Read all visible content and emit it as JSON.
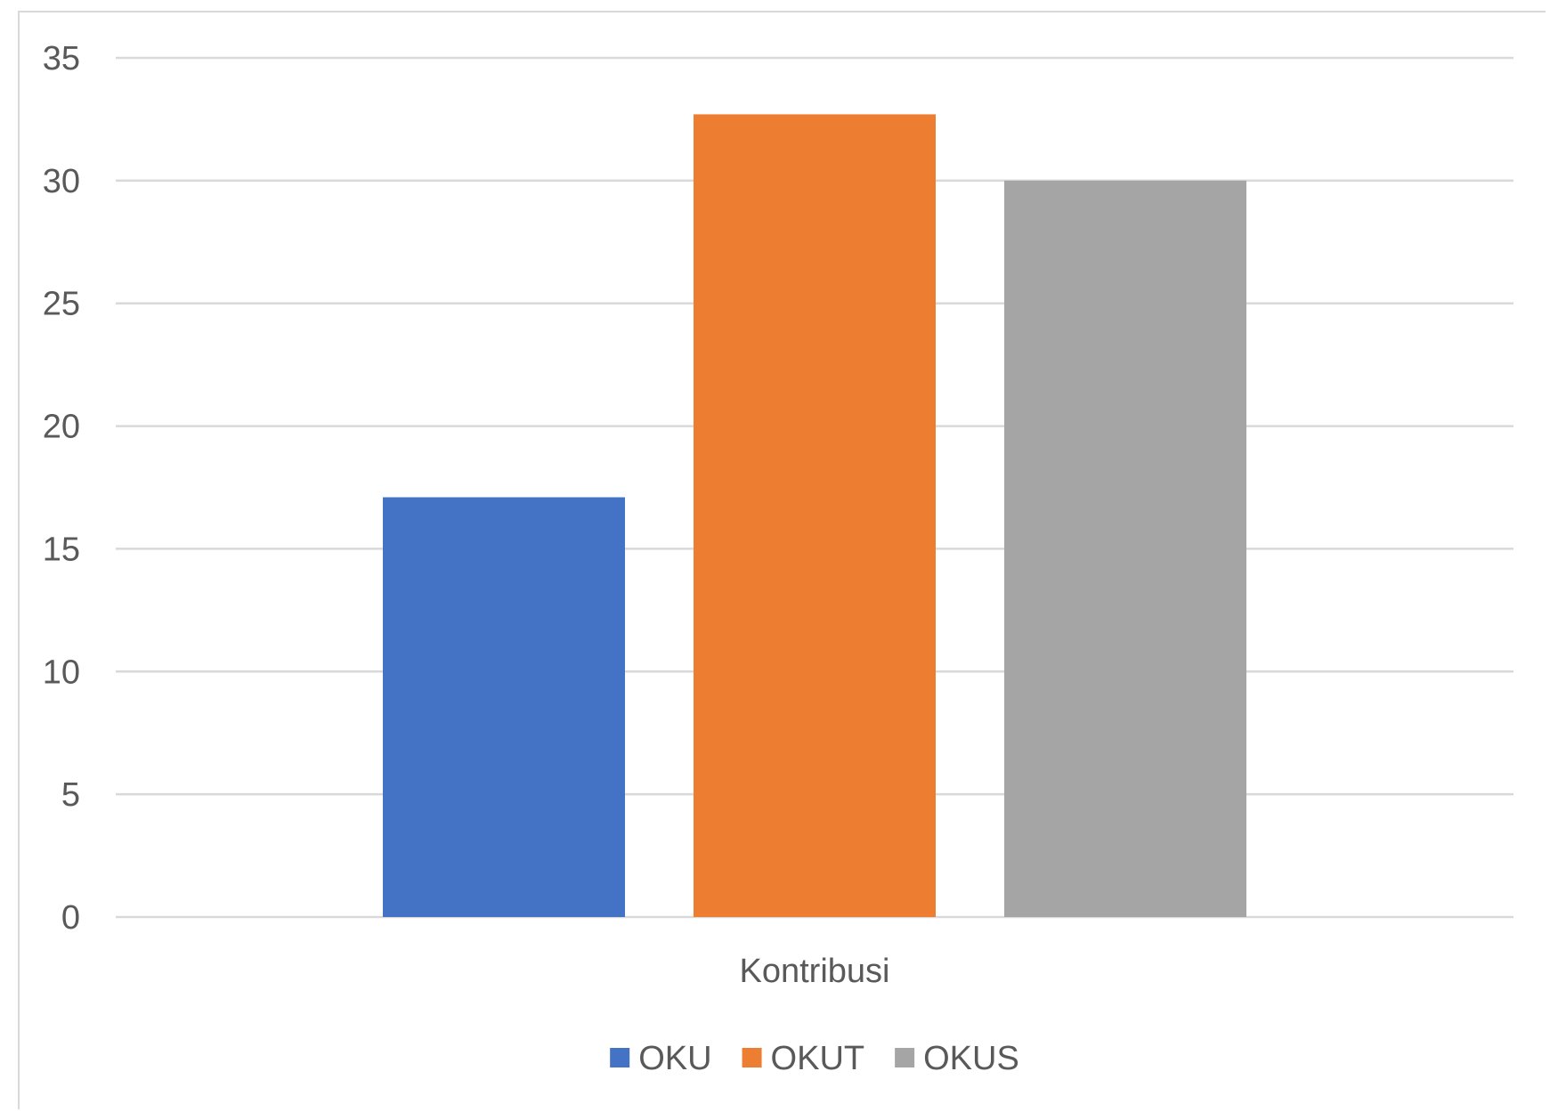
{
  "chart_data": {
    "type": "bar",
    "title": "",
    "xlabel": "",
    "ylabel": "",
    "categories": [
      "Kontribusi"
    ],
    "series": [
      {
        "name": "OKU",
        "values": [
          17.1
        ],
        "color": "#4472c4"
      },
      {
        "name": "OKUT",
        "values": [
          32.7
        ],
        "color": "#ed7d31"
      },
      {
        "name": "OKUS",
        "values": [
          30
        ],
        "color": "#a5a5a5"
      }
    ],
    "ylim": [
      0,
      35
    ],
    "yticks": [
      "0",
      "5",
      "10",
      "15",
      "20",
      "25",
      "30",
      "35"
    ],
    "grid": true,
    "legend_position": "bottom",
    "gridline_color": "#d9d9d9"
  }
}
